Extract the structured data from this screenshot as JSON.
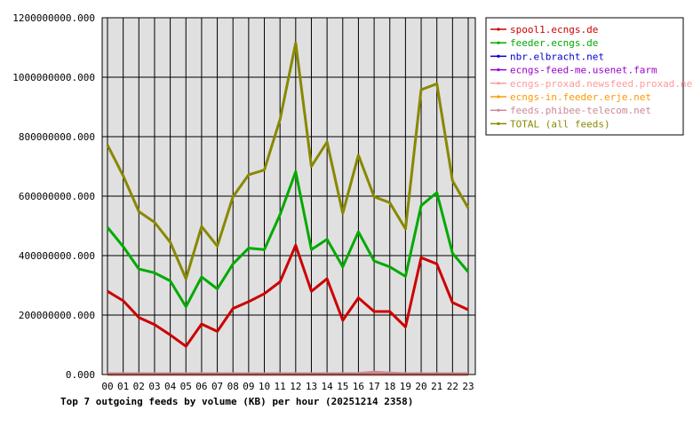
{
  "chart_data": {
    "type": "line",
    "title": "Top 7 outgoing feeds by volume (KB) per hour (20251214 2358)",
    "xlabel": "",
    "ylabel": "",
    "categories": [
      "00",
      "01",
      "02",
      "03",
      "04",
      "05",
      "06",
      "07",
      "08",
      "09",
      "10",
      "11",
      "12",
      "13",
      "14",
      "15",
      "16",
      "17",
      "18",
      "19",
      "20",
      "21",
      "22",
      "23"
    ],
    "ylim": [
      0,
      1200000000
    ],
    "yticks": [
      0,
      200000000,
      400000000,
      600000000,
      800000000,
      1000000000,
      1200000000
    ],
    "ytick_labels": [
      "0.000",
      "200000000.000",
      "400000000.000",
      "600000000.000",
      "800000000.000",
      "1000000000.000",
      "1200000000.000"
    ],
    "grid": true,
    "legend_position": "right",
    "series": [
      {
        "name": "spool1.ecngs.de",
        "color": "#cc0000",
        "values": [
          280000000,
          248000000,
          192000000,
          168000000,
          133000000,
          95000000,
          170000000,
          145000000,
          222000000,
          245000000,
          272000000,
          312000000,
          435000000,
          280000000,
          322000000,
          182000000,
          258000000,
          212000000,
          212000000,
          160000000,
          393000000,
          372000000,
          242000000,
          218000000
        ]
      },
      {
        "name": "feeder.ecngs.de",
        "color": "#00aa00",
        "values": [
          495000000,
          430000000,
          355000000,
          342000000,
          315000000,
          228000000,
          328000000,
          288000000,
          372000000,
          425000000,
          420000000,
          538000000,
          682000000,
          420000000,
          455000000,
          362000000,
          480000000,
          382000000,
          362000000,
          330000000,
          568000000,
          612000000,
          408000000,
          345000000
        ]
      },
      {
        "name": "nbr.elbracht.net",
        "color": "#0000cc",
        "values": [
          1000000,
          1000000,
          1000000,
          1000000,
          1000000,
          1000000,
          1000000,
          1000000,
          1000000,
          1000000,
          1000000,
          1000000,
          1000000,
          1000000,
          1000000,
          1000000,
          1000000,
          1000000,
          1000000,
          1000000,
          1000000,
          1000000,
          1000000,
          1000000
        ]
      },
      {
        "name": "ecngs-feed-me.usenet.farm",
        "color": "#9900cc",
        "values": [
          1000000,
          1000000,
          1000000,
          1000000,
          1000000,
          1000000,
          1000000,
          1000000,
          1000000,
          1000000,
          1000000,
          1000000,
          1000000,
          1000000,
          1000000,
          1000000,
          1000000,
          1000000,
          1000000,
          1000000,
          1000000,
          1000000,
          1000000,
          1000000
        ]
      },
      {
        "name": "ecngs-proxad.newsfeed.proxad.net",
        "color": "#ff9999",
        "values": [
          2000000,
          2000000,
          2000000,
          2000000,
          2000000,
          2000000,
          2000000,
          2000000,
          2000000,
          2000000,
          2000000,
          2000000,
          2000000,
          2000000,
          2000000,
          2000000,
          2000000,
          2000000,
          2000000,
          2000000,
          2000000,
          2000000,
          2000000,
          2000000
        ]
      },
      {
        "name": "ecngs-in.feeder.erje.net",
        "color": "#ff9900",
        "values": [
          1000000,
          1000000,
          1000000,
          1000000,
          1000000,
          1000000,
          1000000,
          1000000,
          1000000,
          1000000,
          1000000,
          1000000,
          1000000,
          1000000,
          1000000,
          1000000,
          1000000,
          1000000,
          1000000,
          1000000,
          1000000,
          1000000,
          1000000,
          1000000
        ]
      },
      {
        "name": "feeds.phibee-telecom.net",
        "color": "#cc8899",
        "values": [
          3000000,
          3000000,
          3000000,
          3000000,
          3000000,
          3000000,
          3000000,
          3000000,
          3000000,
          3000000,
          3000000,
          3000000,
          3000000,
          3000000,
          3000000,
          3000000,
          4000000,
          8000000,
          5000000,
          3000000,
          3000000,
          3000000,
          3000000,
          3000000
        ]
      },
      {
        "name": "TOTAL (all feeds)",
        "color": "#888800",
        "values": [
          772000000,
          668000000,
          548000000,
          512000000,
          445000000,
          322000000,
          498000000,
          432000000,
          598000000,
          672000000,
          688000000,
          858000000,
          1115000000,
          700000000,
          782000000,
          542000000,
          738000000,
          598000000,
          578000000,
          490000000,
          958000000,
          978000000,
          652000000,
          560000000
        ]
      }
    ]
  }
}
